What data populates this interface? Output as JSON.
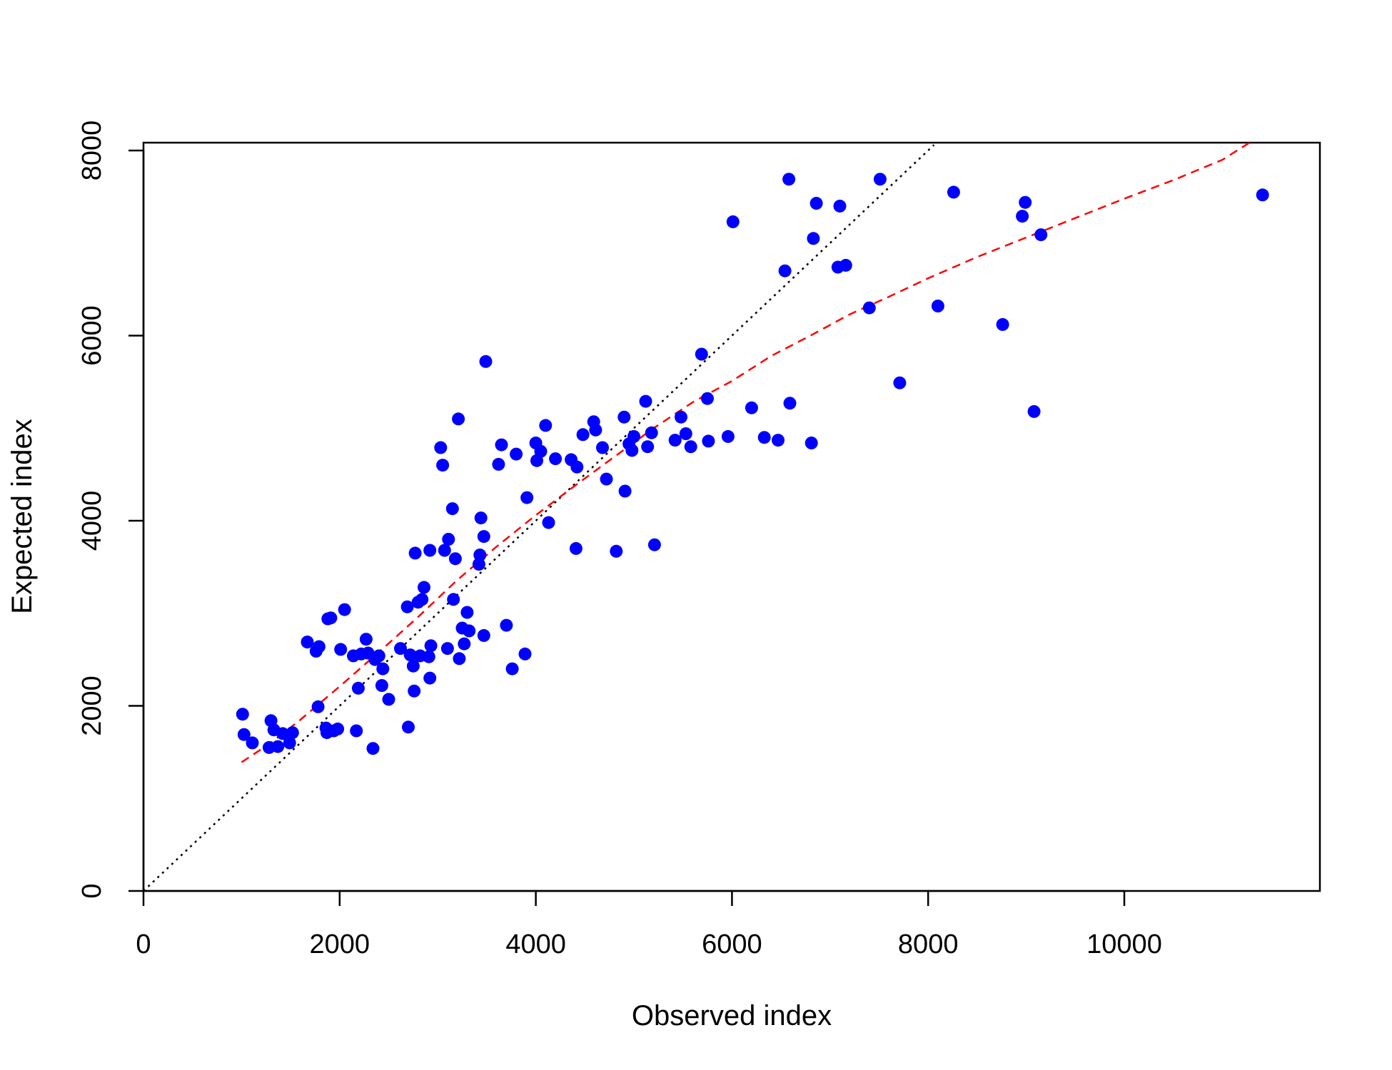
{
  "chart_data": {
    "type": "scatter",
    "title": "",
    "xlabel": "Observed index",
    "ylabel": "Expected index",
    "xlim": [
      0,
      12000
    ],
    "ylim": [
      0,
      8000
    ],
    "x_ticks": [
      0,
      2000,
      4000,
      6000,
      8000,
      10000
    ],
    "y_ticks": [
      0,
      2000,
      4000,
      6000,
      8000
    ],
    "x_tick_labels": [
      "0",
      "2000",
      "4000",
      "6000",
      "8000",
      "10000"
    ],
    "y_tick_labels": [
      "0",
      "2000",
      "4000",
      "6000",
      "8000"
    ],
    "grid": false,
    "legend": "none",
    "colors": {
      "points": "#0000ff",
      "identity_line": "#000000",
      "smooth_line": "#ff0000"
    },
    "series": [
      {
        "type": "scatter",
        "points": [
          [
            1010,
            1910
          ],
          [
            1025,
            1690
          ],
          [
            1110,
            1600
          ],
          [
            1280,
            1550
          ],
          [
            1300,
            1840
          ],
          [
            1330,
            1740
          ],
          [
            1370,
            1560
          ],
          [
            1420,
            1700
          ],
          [
            1490,
            1600
          ],
          [
            1520,
            1710
          ],
          [
            1670,
            2690
          ],
          [
            1760,
            2590
          ],
          [
            1790,
            2640
          ],
          [
            1780,
            1990
          ],
          [
            1860,
            1760
          ],
          [
            1870,
            1710
          ],
          [
            1880,
            2940
          ],
          [
            1910,
            2950
          ],
          [
            1940,
            1730
          ],
          [
            1980,
            1750
          ],
          [
            2010,
            2610
          ],
          [
            2050,
            3040
          ],
          [
            2140,
            2540
          ],
          [
            2170,
            1730
          ],
          [
            2190,
            2190
          ],
          [
            2220,
            2560
          ],
          [
            2270,
            2720
          ],
          [
            2290,
            2570
          ],
          [
            2340,
            1540
          ],
          [
            2360,
            2500
          ],
          [
            2400,
            2540
          ],
          [
            2430,
            2220
          ],
          [
            2440,
            2400
          ],
          [
            2500,
            2070
          ],
          [
            2620,
            2620
          ],
          [
            2690,
            3070
          ],
          [
            2700,
            1770
          ],
          [
            2720,
            2550
          ],
          [
            2750,
            2430
          ],
          [
            2760,
            2160
          ],
          [
            2770,
            3650
          ],
          [
            2800,
            3120
          ],
          [
            2820,
            2540
          ],
          [
            2840,
            3150
          ],
          [
            2860,
            3280
          ],
          [
            2910,
            2530
          ],
          [
            2920,
            3680
          ],
          [
            2920,
            2300
          ],
          [
            2930,
            2650
          ],
          [
            3030,
            4790
          ],
          [
            3050,
            4600
          ],
          [
            3070,
            3680
          ],
          [
            3100,
            2620
          ],
          [
            3110,
            3800
          ],
          [
            3150,
            4130
          ],
          [
            3160,
            3150
          ],
          [
            3180,
            3590
          ],
          [
            3210,
            5100
          ],
          [
            3220,
            2510
          ],
          [
            3250,
            2840
          ],
          [
            3270,
            2670
          ],
          [
            3300,
            3010
          ],
          [
            3320,
            2810
          ],
          [
            3420,
            3530
          ],
          [
            3430,
            3630
          ],
          [
            3440,
            4030
          ],
          [
            3470,
            3830
          ],
          [
            3470,
            2760
          ],
          [
            3490,
            5720
          ],
          [
            3620,
            4610
          ],
          [
            3650,
            4820
          ],
          [
            3700,
            2870
          ],
          [
            3760,
            2400
          ],
          [
            3800,
            4720
          ],
          [
            3890,
            2560
          ],
          [
            3910,
            4250
          ],
          [
            4000,
            4840
          ],
          [
            4010,
            4650
          ],
          [
            4050,
            4750
          ],
          [
            4100,
            5030
          ],
          [
            4130,
            3980
          ],
          [
            4200,
            4670
          ],
          [
            4360,
            4660
          ],
          [
            4410,
            3700
          ],
          [
            4420,
            4580
          ],
          [
            4480,
            4930
          ],
          [
            4590,
            5070
          ],
          [
            4610,
            4980
          ],
          [
            4680,
            4790
          ],
          [
            4720,
            4450
          ],
          [
            4820,
            3670
          ],
          [
            4900,
            5120
          ],
          [
            4910,
            4320
          ],
          [
            4950,
            4830
          ],
          [
            4980,
            4760
          ],
          [
            5000,
            4910
          ],
          [
            5120,
            5290
          ],
          [
            5140,
            4800
          ],
          [
            5180,
            4950
          ],
          [
            5210,
            3740
          ],
          [
            5420,
            4870
          ],
          [
            5480,
            5120
          ],
          [
            5530,
            4940
          ],
          [
            5580,
            4800
          ],
          [
            5690,
            5800
          ],
          [
            5750,
            5320
          ],
          [
            5760,
            4860
          ],
          [
            5960,
            4910
          ],
          [
            6010,
            7230
          ],
          [
            6200,
            5220
          ],
          [
            6330,
            4900
          ],
          [
            6470,
            4870
          ],
          [
            6540,
            6700
          ],
          [
            6580,
            7690
          ],
          [
            6590,
            5270
          ],
          [
            6810,
            4840
          ],
          [
            6830,
            7050
          ],
          [
            6860,
            7430
          ],
          [
            7080,
            6740
          ],
          [
            7100,
            7400
          ],
          [
            7160,
            6760
          ],
          [
            7400,
            6300
          ],
          [
            7510,
            7690
          ],
          [
            7710,
            5490
          ],
          [
            8100,
            6320
          ],
          [
            8260,
            7550
          ],
          [
            8760,
            6120
          ],
          [
            8960,
            7290
          ],
          [
            8990,
            7440
          ],
          [
            9080,
            5180
          ],
          [
            9150,
            7090
          ],
          [
            11410,
            7520
          ]
        ]
      },
      {
        "type": "line",
        "style": "dotted",
        "x": [
          0,
          8060
        ],
        "y": [
          0,
          8060
        ]
      },
      {
        "type": "line",
        "style": "dashed",
        "x": [
          1000,
          1300,
          1600,
          2000,
          2400,
          2800,
          3200,
          3600,
          4000,
          4400,
          4800,
          5200,
          5600,
          6000,
          6400,
          6800,
          7200,
          7600,
          8000,
          8500,
          9000,
          9500,
          10000,
          10500,
          11000,
          11300
        ],
        "y": [
          1390,
          1600,
          1850,
          2210,
          2580,
          2960,
          3360,
          3720,
          4060,
          4380,
          4690,
          5000,
          5280,
          5510,
          5780,
          6000,
          6230,
          6420,
          6620,
          6850,
          7060,
          7270,
          7480,
          7680,
          7900,
          8100
        ]
      }
    ]
  }
}
